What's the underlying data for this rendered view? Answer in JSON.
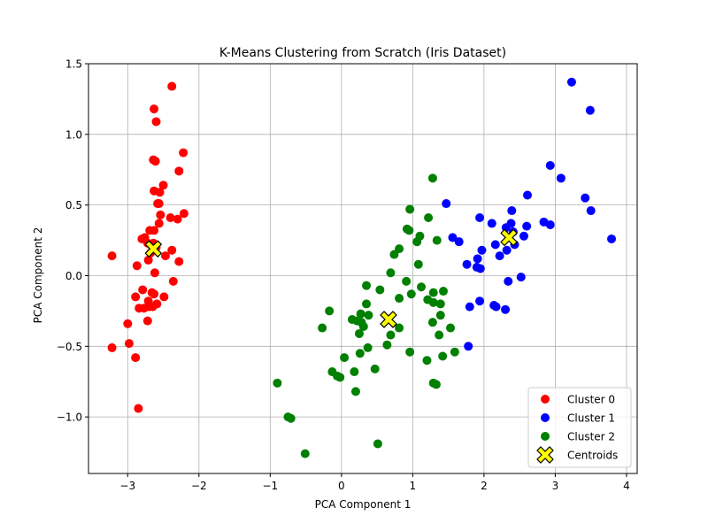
{
  "chart_data": {
    "type": "scatter",
    "title": "K-Means Clustering from Scratch (Iris Dataset)",
    "xlabel": "PCA Component 1",
    "ylabel": "PCA Component 2",
    "xlim": [
      -3.55,
      4.15
    ],
    "ylim": [
      -1.4,
      1.5
    ],
    "xticks": [
      -3,
      -2,
      -1,
      0,
      1,
      2,
      3,
      4
    ],
    "xtick_labels": [
      "−3",
      "−2",
      "−1",
      "0",
      "1",
      "2",
      "3",
      "4"
    ],
    "yticks": [
      -1.0,
      -0.5,
      0.0,
      0.5,
      1.0,
      1.5
    ],
    "ytick_labels": [
      "−1.0",
      "−0.5",
      "0.0",
      "0.5",
      "1.0",
      "1.5"
    ],
    "grid": true,
    "legend_position": "bottom-right",
    "series": [
      {
        "name": "Cluster 0",
        "color": "#ff0000",
        "marker": "circle",
        "points": [
          [
            -2.38,
            1.34
          ],
          [
            -2.63,
            1.18
          ],
          [
            -2.6,
            1.09
          ],
          [
            -2.22,
            0.87
          ],
          [
            -2.64,
            0.82
          ],
          [
            -2.61,
            0.81
          ],
          [
            -2.28,
            0.74
          ],
          [
            -2.5,
            0.64
          ],
          [
            -2.63,
            0.6
          ],
          [
            -2.55,
            0.59
          ],
          [
            -2.56,
            0.51
          ],
          [
            -2.58,
            0.51
          ],
          [
            -2.21,
            0.44
          ],
          [
            -2.54,
            0.43
          ],
          [
            -2.4,
            0.41
          ],
          [
            -2.3,
            0.4
          ],
          [
            -2.56,
            0.37
          ],
          [
            -2.63,
            0.32
          ],
          [
            -2.69,
            0.32
          ],
          [
            -2.76,
            0.27
          ],
          [
            -2.8,
            0.26
          ],
          [
            -2.64,
            0.23
          ],
          [
            -2.72,
            0.23
          ],
          [
            -2.66,
            0.21
          ],
          [
            -2.6,
            0.2
          ],
          [
            -2.68,
            0.16
          ],
          [
            -2.38,
            0.18
          ],
          [
            -3.22,
            0.14
          ],
          [
            -2.47,
            0.14
          ],
          [
            -2.71,
            0.11
          ],
          [
            -2.28,
            0.1
          ],
          [
            -2.87,
            0.07
          ],
          [
            -2.62,
            0.02
          ],
          [
            -2.36,
            -0.04
          ],
          [
            -2.79,
            -0.1
          ],
          [
            -2.66,
            -0.12
          ],
          [
            -2.63,
            -0.13
          ],
          [
            -2.89,
            -0.15
          ],
          [
            -2.71,
            -0.18
          ],
          [
            -2.49,
            -0.15
          ],
          [
            -2.7,
            -0.22
          ],
          [
            -2.59,
            -0.2
          ],
          [
            -2.84,
            -0.23
          ],
          [
            -2.77,
            -0.23
          ],
          [
            -2.65,
            -0.22
          ],
          [
            -2.72,
            -0.32
          ],
          [
            -3.0,
            -0.34
          ],
          [
            -2.98,
            -0.48
          ],
          [
            -3.22,
            -0.51
          ],
          [
            -2.89,
            -0.58
          ],
          [
            -2.85,
            -0.94
          ]
        ]
      },
      {
        "name": "Cluster 1",
        "color": "#0000ff",
        "marker": "circle",
        "points": [
          [
            3.23,
            1.37
          ],
          [
            3.49,
            1.17
          ],
          [
            2.93,
            0.78
          ],
          [
            3.08,
            0.69
          ],
          [
            2.61,
            0.57
          ],
          [
            3.42,
            0.55
          ],
          [
            1.47,
            0.51
          ],
          [
            3.5,
            0.46
          ],
          [
            2.39,
            0.46
          ],
          [
            1.94,
            0.41
          ],
          [
            2.84,
            0.38
          ],
          [
            2.11,
            0.37
          ],
          [
            2.38,
            0.37
          ],
          [
            2.93,
            0.36
          ],
          [
            2.6,
            0.35
          ],
          [
            2.31,
            0.34
          ],
          [
            2.41,
            0.31
          ],
          [
            2.56,
            0.28
          ],
          [
            1.56,
            0.27
          ],
          [
            3.79,
            0.26
          ],
          [
            1.65,
            0.24
          ],
          [
            2.16,
            0.22
          ],
          [
            2.43,
            0.22
          ],
          [
            1.97,
            0.18
          ],
          [
            2.32,
            0.18
          ],
          [
            2.22,
            0.14
          ],
          [
            1.91,
            0.12
          ],
          [
            1.76,
            0.08
          ],
          [
            1.9,
            0.06
          ],
          [
            1.95,
            0.05
          ],
          [
            2.52,
            -0.01
          ],
          [
            2.34,
            -0.04
          ],
          [
            1.94,
            -0.18
          ],
          [
            2.14,
            -0.21
          ],
          [
            1.8,
            -0.22
          ],
          [
            2.17,
            -0.22
          ],
          [
            2.3,
            -0.24
          ],
          [
            1.78,
            -0.5
          ]
        ]
      },
      {
        "name": "Cluster 2",
        "color": "#008000",
        "marker": "circle",
        "points": [
          [
            1.28,
            0.69
          ],
          [
            0.96,
            0.47
          ],
          [
            1.22,
            0.41
          ],
          [
            0.92,
            0.33
          ],
          [
            0.95,
            0.32
          ],
          [
            1.1,
            0.28
          ],
          [
            1.34,
            0.25
          ],
          [
            1.06,
            0.24
          ],
          [
            0.81,
            0.19
          ],
          [
            0.74,
            0.15
          ],
          [
            1.08,
            0.08
          ],
          [
            0.69,
            0.02
          ],
          [
            0.91,
            -0.04
          ],
          [
            0.35,
            -0.07
          ],
          [
            1.12,
            -0.08
          ],
          [
            0.54,
            -0.1
          ],
          [
            1.43,
            -0.11
          ],
          [
            1.29,
            -0.12
          ],
          [
            0.98,
            -0.13
          ],
          [
            0.81,
            -0.16
          ],
          [
            1.21,
            -0.17
          ],
          [
            1.29,
            -0.19
          ],
          [
            0.35,
            -0.2
          ],
          [
            1.39,
            -0.2
          ],
          [
            -0.17,
            -0.25
          ],
          [
            0.27,
            -0.27
          ],
          [
            0.38,
            -0.28
          ],
          [
            1.39,
            -0.28
          ],
          [
            0.15,
            -0.31
          ],
          [
            0.22,
            -0.32
          ],
          [
            0.28,
            -0.33
          ],
          [
            1.28,
            -0.33
          ],
          [
            0.31,
            -0.36
          ],
          [
            -0.27,
            -0.37
          ],
          [
            0.81,
            -0.37
          ],
          [
            1.53,
            -0.37
          ],
          [
            0.25,
            -0.41
          ],
          [
            0.69,
            -0.42
          ],
          [
            1.37,
            -0.42
          ],
          [
            0.64,
            -0.49
          ],
          [
            0.37,
            -0.51
          ],
          [
            0.96,
            -0.54
          ],
          [
            1.59,
            -0.54
          ],
          [
            0.26,
            -0.55
          ],
          [
            1.42,
            -0.57
          ],
          [
            0.04,
            -0.58
          ],
          [
            1.2,
            -0.6
          ],
          [
            0.47,
            -0.66
          ],
          [
            0.18,
            -0.68
          ],
          [
            -0.13,
            -0.68
          ],
          [
            -0.06,
            -0.71
          ],
          [
            -0.02,
            -0.72
          ],
          [
            1.29,
            -0.76
          ],
          [
            1.33,
            -0.77
          ],
          [
            -0.9,
            -0.76
          ],
          [
            0.2,
            -0.82
          ],
          [
            -0.75,
            -1.0
          ],
          [
            -0.71,
            -1.01
          ],
          [
            0.51,
            -1.19
          ],
          [
            -0.51,
            -1.26
          ]
        ]
      },
      {
        "name": "Centroids",
        "color": "#ffff00",
        "edgecolor": "#000000",
        "marker": "x-filled",
        "points": [
          [
            -2.64,
            0.19
          ],
          [
            2.35,
            0.27
          ],
          [
            0.66,
            -0.31
          ]
        ]
      }
    ]
  }
}
